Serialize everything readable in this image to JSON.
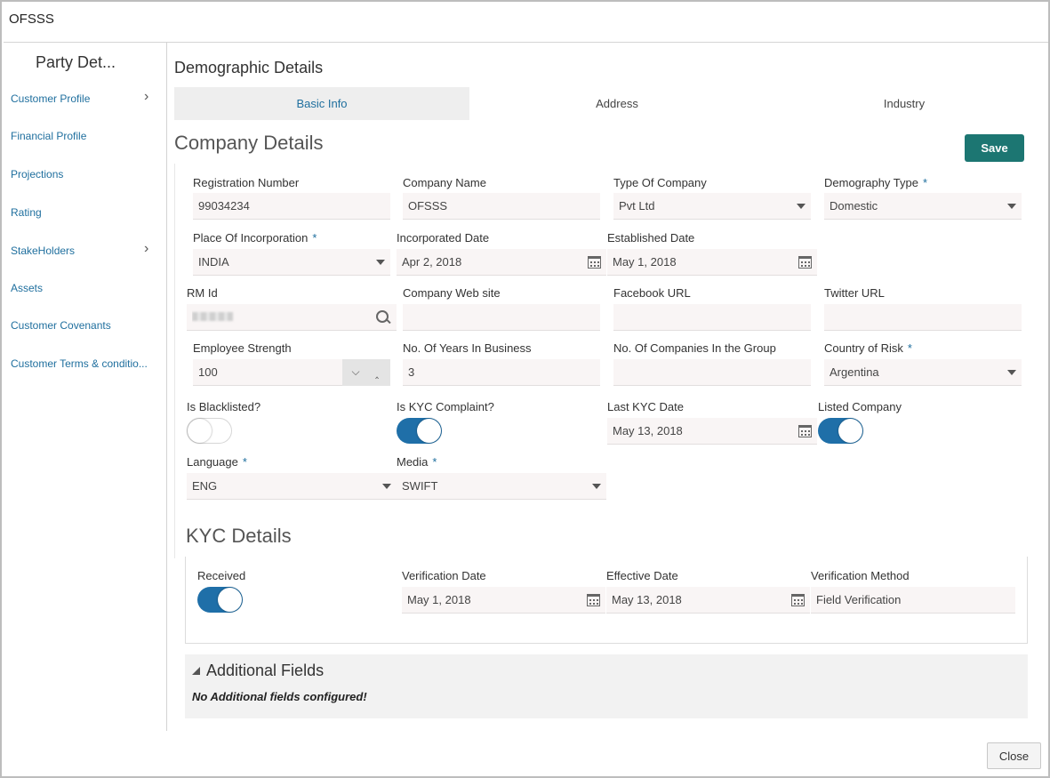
{
  "window": {
    "title": "OFSSS"
  },
  "sidebar": {
    "title": "Party Det...",
    "items": [
      {
        "label": "Customer Profile",
        "has_chevron": true
      },
      {
        "label": "Financial Profile",
        "has_chevron": false
      },
      {
        "label": "Projections",
        "has_chevron": false
      },
      {
        "label": "Rating",
        "has_chevron": false
      },
      {
        "label": "StakeHolders",
        "has_chevron": true
      },
      {
        "label": "Assets",
        "has_chevron": false
      },
      {
        "label": "Customer Covenants",
        "has_chevron": false
      },
      {
        "label": "Customer Terms & conditio...",
        "has_chevron": false
      }
    ]
  },
  "main": {
    "section_title": "Demographic Details",
    "tabs": [
      {
        "label": "Basic Info",
        "active": true
      },
      {
        "label": "Address",
        "active": false
      },
      {
        "label": "Industry",
        "active": false
      }
    ],
    "company_title": "Company Details",
    "save_label": "Save",
    "required_mark": "*",
    "fields": {
      "registration_number": {
        "label": "Registration Number",
        "value": "99034234"
      },
      "company_name": {
        "label": "Company Name",
        "value": "OFSSS"
      },
      "type_of_company": {
        "label": "Type Of Company",
        "value": "Pvt Ltd"
      },
      "demography_type": {
        "label": "Demography Type",
        "value": "Domestic"
      },
      "place_of_incorporation": {
        "label": "Place Of Incorporation",
        "value": "INDIA"
      },
      "incorporated_date": {
        "label": "Incorporated Date",
        "value": "Apr 2, 2018"
      },
      "established_date": {
        "label": "Established Date",
        "value": "May 1, 2018"
      },
      "rm_id": {
        "label": "RM Id",
        "value": ""
      },
      "company_website": {
        "label": "Company Web site",
        "value": ""
      },
      "facebook_url": {
        "label": "Facebook URL",
        "value": ""
      },
      "twitter_url": {
        "label": "Twitter URL",
        "value": ""
      },
      "employee_strength": {
        "label": "Employee Strength",
        "value": "100"
      },
      "years_in_business": {
        "label": "No. Of Years In Business",
        "value": "3"
      },
      "companies_in_group": {
        "label": "No. Of Companies In the Group",
        "value": ""
      },
      "country_of_risk": {
        "label": "Country of Risk",
        "value": "Argentina"
      },
      "is_blacklisted": {
        "label": "Is Blacklisted?",
        "on": false
      },
      "is_kyc_complaint": {
        "label": "Is KYC Complaint?",
        "on": true
      },
      "last_kyc_date": {
        "label": "Last KYC Date",
        "value": "May 13, 2018"
      },
      "listed_company": {
        "label": "Listed Company",
        "on": true
      },
      "language": {
        "label": "Language",
        "value": "ENG"
      },
      "media": {
        "label": "Media",
        "value": "SWIFT"
      }
    },
    "kyc": {
      "title": "KYC Details",
      "received": {
        "label": "Received",
        "on": true
      },
      "verification_date": {
        "label": "Verification Date",
        "value": "May 1, 2018"
      },
      "effective_date": {
        "label": "Effective Date",
        "value": "May 13, 2018"
      },
      "verification_method": {
        "label": "Verification Method",
        "value": "Field Verification"
      }
    },
    "additional": {
      "title": "Additional Fields",
      "message": "No Additional fields configured!"
    }
  },
  "footer": {
    "close_label": "Close"
  },
  "colors": {
    "accent": "#1f6f9e",
    "save_button": "#1c7672",
    "toggle_on": "#1f6fa8"
  },
  "icons": [
    "chevron-right-icon",
    "caret-down-icon",
    "calendar-icon",
    "search-icon",
    "chevron-down-icon",
    "chevron-up-icon",
    "collapse-triangle-icon"
  ]
}
